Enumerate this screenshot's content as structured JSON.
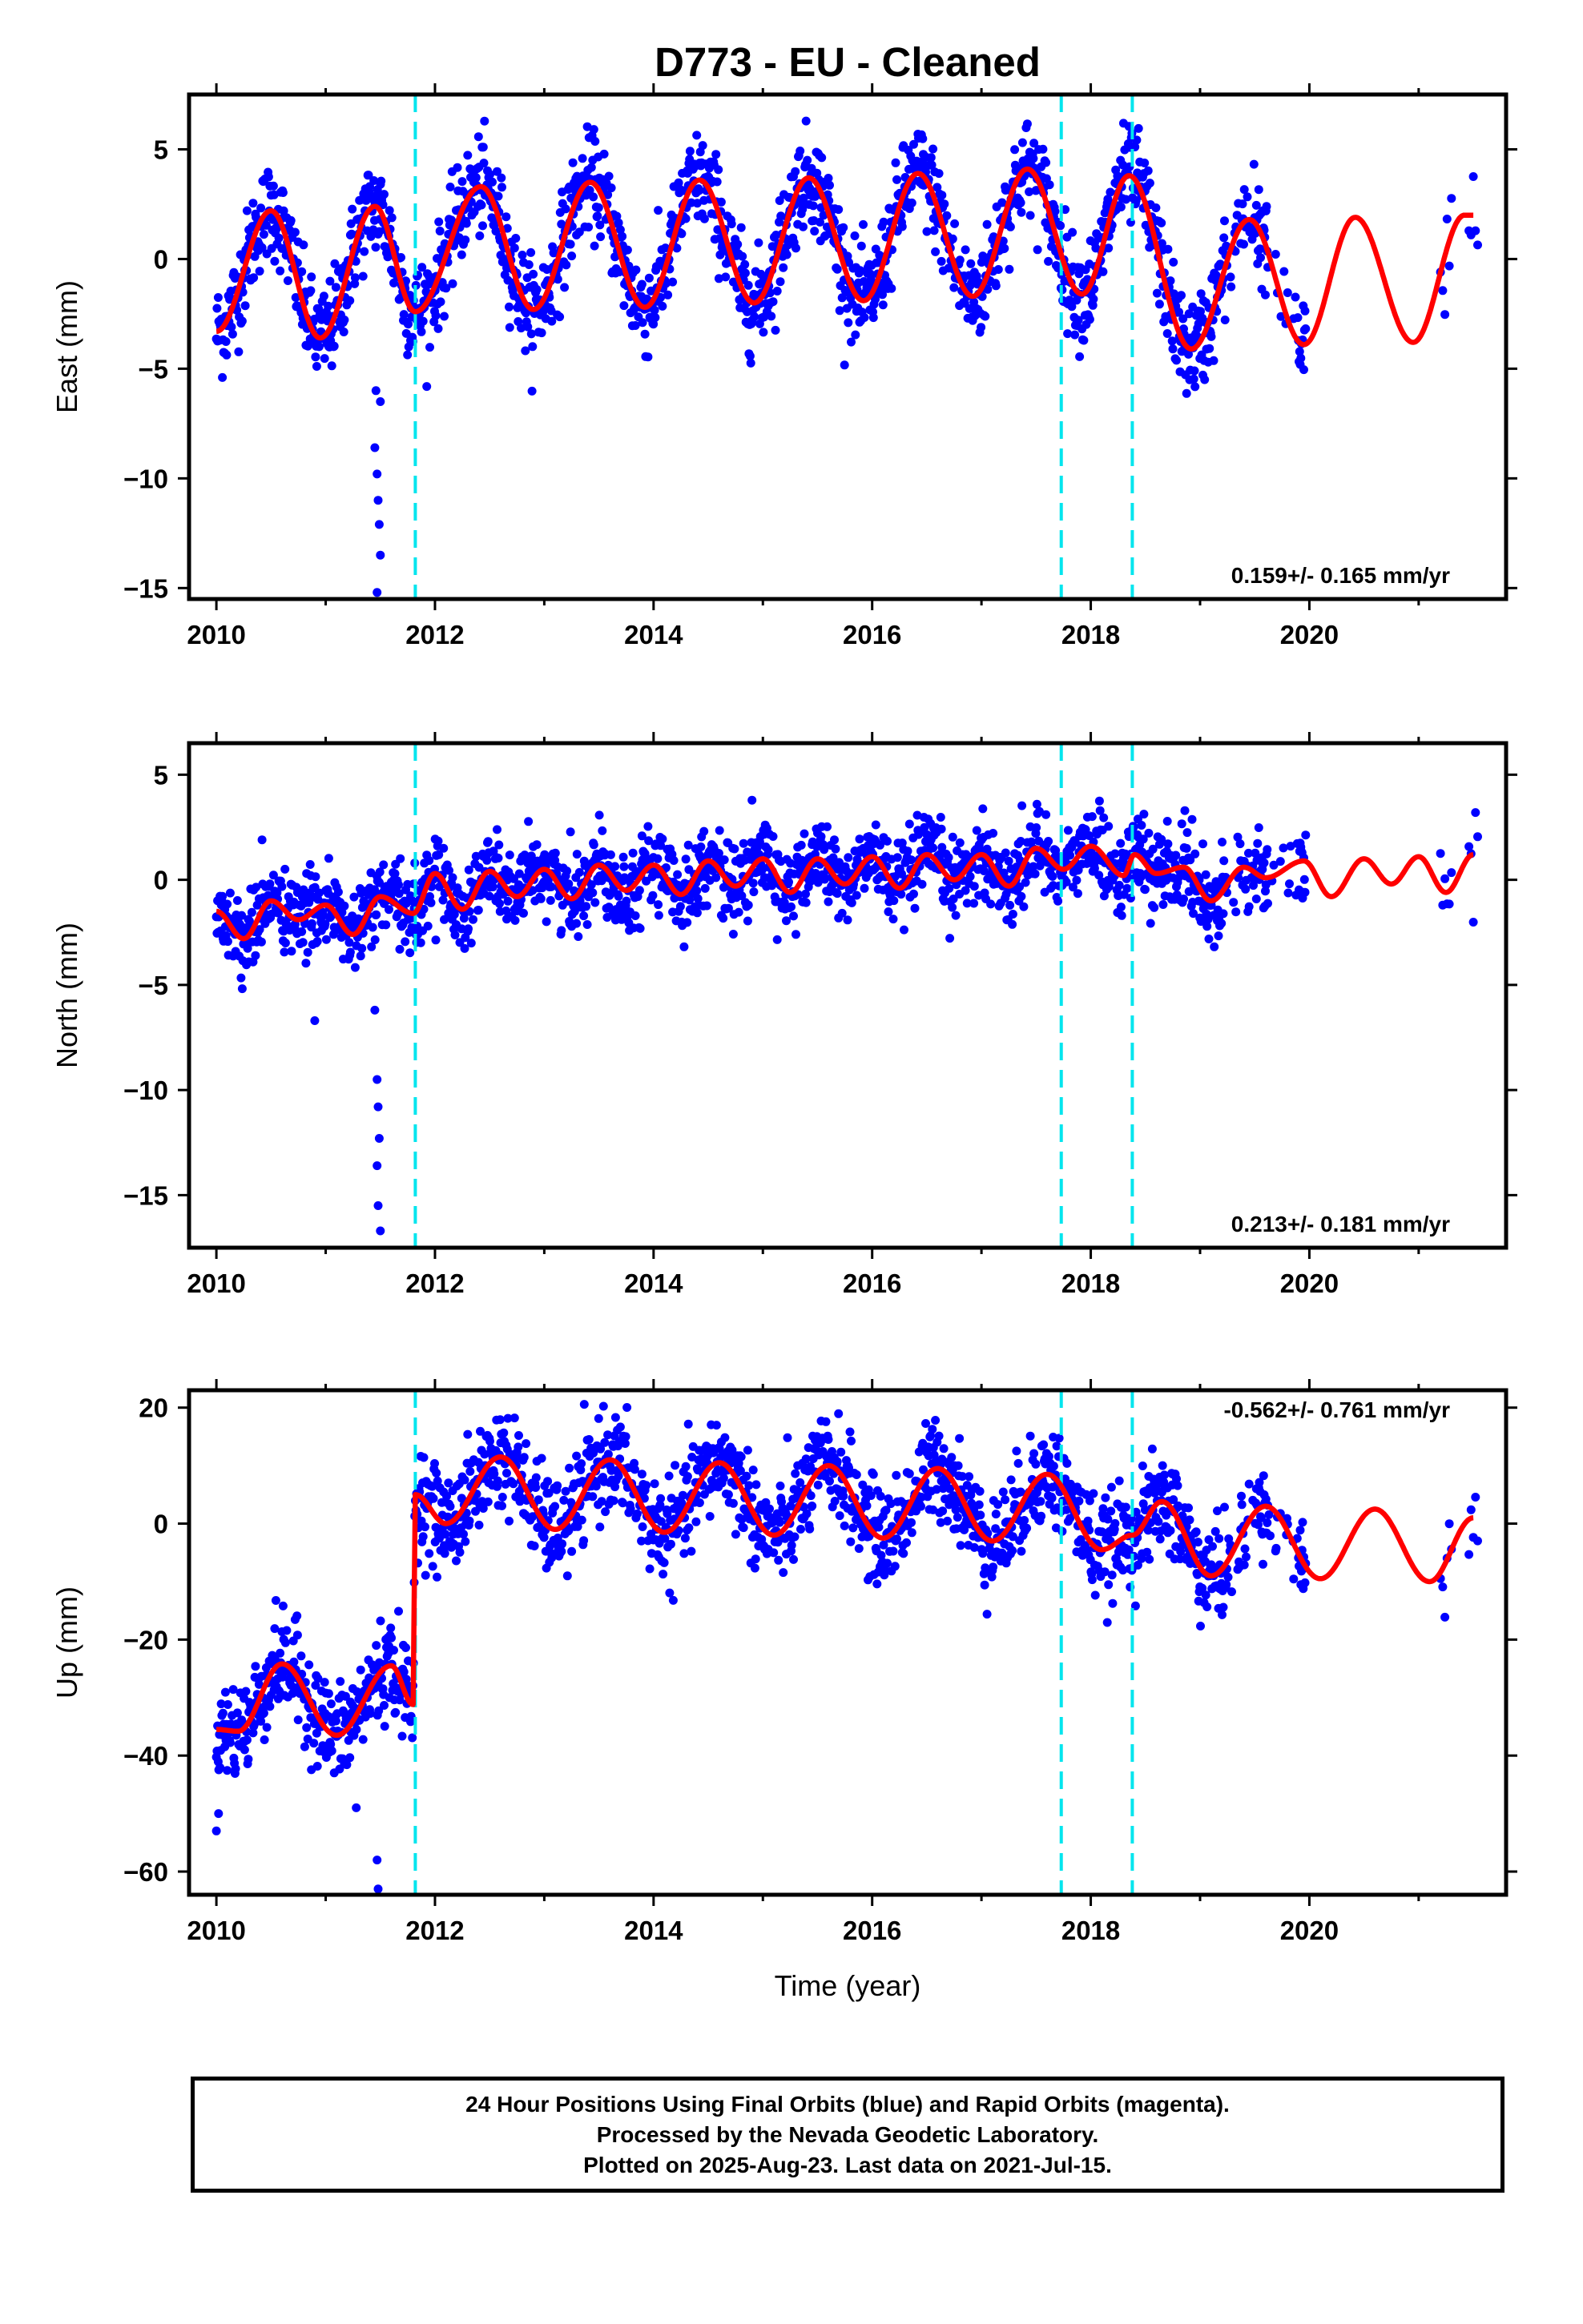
{
  "title": "D773  - EU - Cleaned",
  "xlabel": "Time (year)",
  "footer": {
    "line1": "24 Hour Positions Using Final Orbits (blue) and Rapid Orbits (magenta).",
    "line2": "Processed by the Nevada Geodetic Laboratory.",
    "line3": "Plotted on 2025-Aug-23. Last data on 2021-Jul-15."
  },
  "colors": {
    "data": "#0000ff",
    "model": "#ff0000",
    "events": "#00e5ee",
    "frame": "#000000"
  },
  "chart_data": [
    {
      "type": "scatter",
      "component": "East",
      "ylabel": "East (mm)",
      "rate_label": "0.159+/- 0.165 mm/yr",
      "xlim": [
        2009.75,
        2021.8
      ],
      "ylim": [
        -15.5,
        7.5
      ],
      "x_ticks": [
        2010,
        2012,
        2014,
        2016,
        2018,
        2020
      ],
      "y_ticks": [
        5,
        0,
        -5,
        -10,
        -15
      ],
      "event_lines": [
        2011.82,
        2017.73,
        2018.38
      ],
      "model": {
        "offset_before": -0.7,
        "offset_mid": -0.1,
        "offset_late": 0.2,
        "amplitude": [
          2.8,
          2.9,
          2.9,
          2.9,
          2.9,
          2.9,
          3.0,
          2.9,
          2.9,
          2.9,
          2.9,
          2.9
        ],
        "peak_phase": 0.45
      },
      "samples": [
        {
          "x": 2010.0,
          "y": -3.3
        },
        {
          "x": 2010.5,
          "y": 2.2
        },
        {
          "x": 2010.95,
          "y": -3.6
        },
        {
          "x": 2011.45,
          "y": 2.4
        },
        {
          "x": 2011.82,
          "y": -2.4
        },
        {
          "x": 2012.42,
          "y": 3.3
        },
        {
          "x": 2012.9,
          "y": -2.3
        },
        {
          "x": 2013.42,
          "y": 3.5
        },
        {
          "x": 2013.92,
          "y": -2.2
        },
        {
          "x": 2014.42,
          "y": 3.6
        },
        {
          "x": 2014.92,
          "y": -2.0
        },
        {
          "x": 2015.42,
          "y": 3.7
        },
        {
          "x": 2015.92,
          "y": -1.9
        },
        {
          "x": 2016.42,
          "y": 3.9
        },
        {
          "x": 2016.92,
          "y": -1.7
        },
        {
          "x": 2017.42,
          "y": 4.1
        },
        {
          "x": 2017.92,
          "y": -1.6
        },
        {
          "x": 2018.35,
          "y": 3.8
        },
        {
          "x": 2018.92,
          "y": -4.1
        },
        {
          "x": 2019.45,
          "y": 1.8
        },
        {
          "x": 2019.95,
          "y": -3.9
        },
        {
          "x": 2020.42,
          "y": 1.9
        },
        {
          "x": 2020.95,
          "y": -3.8
        },
        {
          "x": 2021.42,
          "y": 2.0
        }
      ],
      "outliers": [
        {
          "x": 2011.45,
          "y": -8.6
        },
        {
          "x": 2011.47,
          "y": -9.8
        },
        {
          "x": 2011.48,
          "y": -11.0
        },
        {
          "x": 2011.49,
          "y": -12.1
        },
        {
          "x": 2011.5,
          "y": -13.5
        },
        {
          "x": 2011.47,
          "y": -15.2
        },
        {
          "x": 2011.46,
          "y": -6.0
        },
        {
          "x": 2011.5,
          "y": -6.5
        }
      ]
    },
    {
      "type": "scatter",
      "component": "North",
      "ylabel": "North (mm)",
      "rate_label": "0.213+/- 0.181 mm/yr",
      "xlim": [
        2009.75,
        2021.8
      ],
      "ylim": [
        -17.5,
        6.5
      ],
      "x_ticks": [
        2010,
        2012,
        2014,
        2016,
        2018,
        2020
      ],
      "y_ticks": [
        5,
        0,
        -5,
        -10,
        -15
      ],
      "event_lines": [
        2011.82,
        2017.73,
        2018.38
      ],
      "samples": [
        {
          "x": 2010.0,
          "y": -1.5
        },
        {
          "x": 2010.25,
          "y": -2.8
        },
        {
          "x": 2010.5,
          "y": -1.0
        },
        {
          "x": 2010.75,
          "y": -1.9
        },
        {
          "x": 2011.0,
          "y": -1.2
        },
        {
          "x": 2011.25,
          "y": -2.6
        },
        {
          "x": 2011.5,
          "y": -0.8
        },
        {
          "x": 2011.8,
          "y": -1.6
        },
        {
          "x": 2012.0,
          "y": 0.3
        },
        {
          "x": 2012.25,
          "y": -1.4
        },
        {
          "x": 2012.5,
          "y": 0.4
        },
        {
          "x": 2012.75,
          "y": -0.8
        },
        {
          "x": 2013.0,
          "y": 0.5
        },
        {
          "x": 2013.25,
          "y": -0.9
        },
        {
          "x": 2013.5,
          "y": 0.7
        },
        {
          "x": 2013.75,
          "y": -0.5
        },
        {
          "x": 2014.0,
          "y": 0.7
        },
        {
          "x": 2014.25,
          "y": -0.7
        },
        {
          "x": 2014.5,
          "y": 0.9
        },
        {
          "x": 2014.75,
          "y": -0.3
        },
        {
          "x": 2015.0,
          "y": 1.0
        },
        {
          "x": 2015.25,
          "y": -0.6
        },
        {
          "x": 2015.5,
          "y": 1.0
        },
        {
          "x": 2015.75,
          "y": -0.2
        },
        {
          "x": 2016.0,
          "y": 1.1
        },
        {
          "x": 2016.25,
          "y": -0.4
        },
        {
          "x": 2016.5,
          "y": 1.2
        },
        {
          "x": 2016.75,
          "y": 0.0
        },
        {
          "x": 2017.0,
          "y": 1.2
        },
        {
          "x": 2017.25,
          "y": -0.3
        },
        {
          "x": 2017.5,
          "y": 1.5
        },
        {
          "x": 2017.75,
          "y": 0.5
        },
        {
          "x": 2018.0,
          "y": 1.6
        },
        {
          "x": 2018.3,
          "y": 0.2
        },
        {
          "x": 2018.4,
          "y": 1.2
        },
        {
          "x": 2018.6,
          "y": 0.3
        },
        {
          "x": 2018.85,
          "y": 0.6
        },
        {
          "x": 2019.1,
          "y": -1.0
        },
        {
          "x": 2019.4,
          "y": 0.6
        },
        {
          "x": 2019.6,
          "y": 0.1
        },
        {
          "x": 2019.95,
          "y": 0.9
        },
        {
          "x": 2020.2,
          "y": -0.8
        },
        {
          "x": 2020.5,
          "y": 1.0
        },
        {
          "x": 2020.75,
          "y": -0.2
        },
        {
          "x": 2021.0,
          "y": 1.1
        },
        {
          "x": 2021.25,
          "y": -0.6
        },
        {
          "x": 2021.5,
          "y": 1.2
        }
      ],
      "outliers": [
        {
          "x": 2011.45,
          "y": -6.2
        },
        {
          "x": 2011.47,
          "y": -9.5
        },
        {
          "x": 2011.48,
          "y": -10.8
        },
        {
          "x": 2011.49,
          "y": -12.3
        },
        {
          "x": 2011.47,
          "y": -13.6
        },
        {
          "x": 2011.48,
          "y": -15.5
        },
        {
          "x": 2011.5,
          "y": -16.7
        },
        {
          "x": 2010.9,
          "y": -6.7
        }
      ]
    },
    {
      "type": "scatter",
      "component": "Up",
      "ylabel": "Up (mm)",
      "rate_label": "-0.562+/- 0.761 mm/yr",
      "xlim": [
        2009.75,
        2021.8
      ],
      "ylim": [
        -64,
        23
      ],
      "x_ticks": [
        2010,
        2012,
        2014,
        2016,
        2018,
        2020
      ],
      "y_ticks": [
        20,
        0,
        -20,
        -40,
        -60
      ],
      "event_lines": [
        2011.82,
        2017.73,
        2018.38
      ],
      "samples": [
        {
          "x": 2010.0,
          "y": -35.5
        },
        {
          "x": 2010.2,
          "y": -35.8
        },
        {
          "x": 2010.6,
          "y": -24.2
        },
        {
          "x": 2011.1,
          "y": -36.5
        },
        {
          "x": 2011.6,
          "y": -24.5
        },
        {
          "x": 2011.8,
          "y": -31.2
        },
        {
          "x": 2011.82,
          "y": 5.0
        },
        {
          "x": 2012.1,
          "y": 0.0
        },
        {
          "x": 2012.6,
          "y": 11.5
        },
        {
          "x": 2013.1,
          "y": -1.0
        },
        {
          "x": 2013.6,
          "y": 11.0
        },
        {
          "x": 2014.1,
          "y": -1.5
        },
        {
          "x": 2014.6,
          "y": 10.5
        },
        {
          "x": 2015.1,
          "y": -2.0
        },
        {
          "x": 2015.6,
          "y": 10.0
        },
        {
          "x": 2016.1,
          "y": -2.5
        },
        {
          "x": 2016.6,
          "y": 9.5
        },
        {
          "x": 2017.1,
          "y": -3.0
        },
        {
          "x": 2017.6,
          "y": 8.5
        },
        {
          "x": 2018.1,
          "y": -4.5
        },
        {
          "x": 2018.38,
          "y": -2.0
        },
        {
          "x": 2018.65,
          "y": 3.8
        },
        {
          "x": 2019.1,
          "y": -9.0
        },
        {
          "x": 2019.6,
          "y": 3.0
        },
        {
          "x": 2020.1,
          "y": -9.5
        },
        {
          "x": 2020.6,
          "y": 2.5
        },
        {
          "x": 2021.1,
          "y": -10.0
        },
        {
          "x": 2021.5,
          "y": 1.0
        }
      ],
      "outliers": [
        {
          "x": 2011.47,
          "y": -58.0
        },
        {
          "x": 2011.48,
          "y": -63.0
        },
        {
          "x": 2010.0,
          "y": -53.0
        },
        {
          "x": 2010.02,
          "y": -50.0
        },
        {
          "x": 2011.28,
          "y": -49.0
        }
      ]
    }
  ]
}
